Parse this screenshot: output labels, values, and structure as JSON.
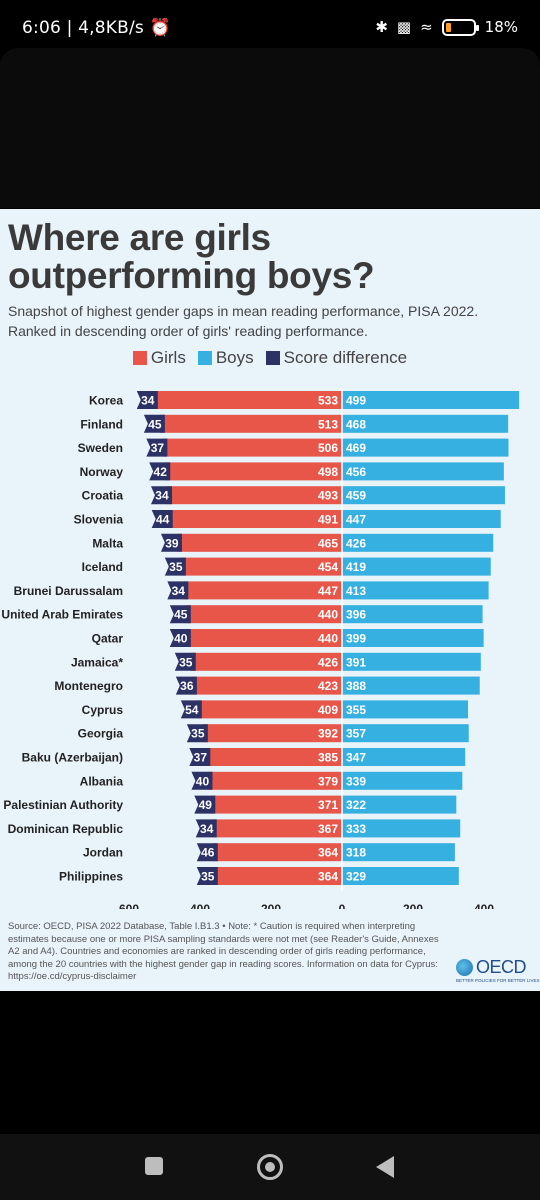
{
  "status_bar": {
    "time_speed": "6:06 | 4,8KB/s",
    "alarm_icon": "alarm-icon",
    "battery_percent": "18%",
    "battery_level": 0.18
  },
  "infographic": {
    "title": "Where are girls outperforming boys?",
    "subtitle": "Snapshot of highest gender gaps in mean reading performance, PISA 2022. Ranked in descending order of girls' reading performance.",
    "source_note": "Source: OECD, PISA 2022 Database, Table I.B1.3 • Note: * Caution is required when interpreting estimates because one or more PISA sampling standards were not met (see Reader's Guide, Annexes A2 and A4). Countries and economies are ranked in descending order of girls reading performance, among the 20 countries with the highest gender gap in reading scores. Information on data for Cyprus: https://oe.cd/cyprus-disclaimer",
    "logo_text": "OECD",
    "logo_tagline": "BETTER POLICIES FOR BETTER LIVES"
  },
  "chart_data": {
    "type": "bar",
    "orientation": "horizontal-diverging",
    "legend_placement": "top-center",
    "grid": false,
    "colors": {
      "girls": "#e8564a",
      "boys": "#35b0e0",
      "difference": "#2c3166"
    },
    "series_names": [
      "Girls",
      "Boys",
      "Score difference"
    ],
    "xlim_girls": [
      600,
      0
    ],
    "xlim_boys": [
      0,
      400
    ],
    "x_ticks": [
      "600",
      "400",
      "200",
      "0",
      "200",
      "400"
    ],
    "categories": [
      "Korea",
      "Finland",
      "Sweden",
      "Norway",
      "Croatia",
      "Slovenia",
      "Malta",
      "Iceland",
      "Brunei Darussalam",
      "United Arab Emirates",
      "Qatar",
      "Jamaica*",
      "Montenegro",
      "Cyprus",
      "Georgia",
      "Baku (Azerbaijan)",
      "Albania",
      "Palestinian Authority",
      "Dominican Republic",
      "Jordan",
      "Philippines"
    ],
    "girls": [
      533,
      513,
      506,
      498,
      493,
      491,
      465,
      454,
      447,
      440,
      440,
      426,
      423,
      409,
      392,
      385,
      379,
      371,
      367,
      364,
      364
    ],
    "boys": [
      499,
      468,
      469,
      456,
      459,
      447,
      426,
      419,
      413,
      396,
      399,
      391,
      388,
      355,
      357,
      347,
      339,
      322,
      333,
      318,
      329
    ],
    "difference": [
      34,
      45,
      37,
      42,
      34,
      44,
      39,
      35,
      34,
      45,
      40,
      35,
      36,
      54,
      35,
      37,
      40,
      49,
      34,
      46,
      35
    ]
  },
  "nav_bar": {
    "recents_icon": "recents-icon",
    "home_icon": "home-icon",
    "back_icon": "back-icon"
  }
}
